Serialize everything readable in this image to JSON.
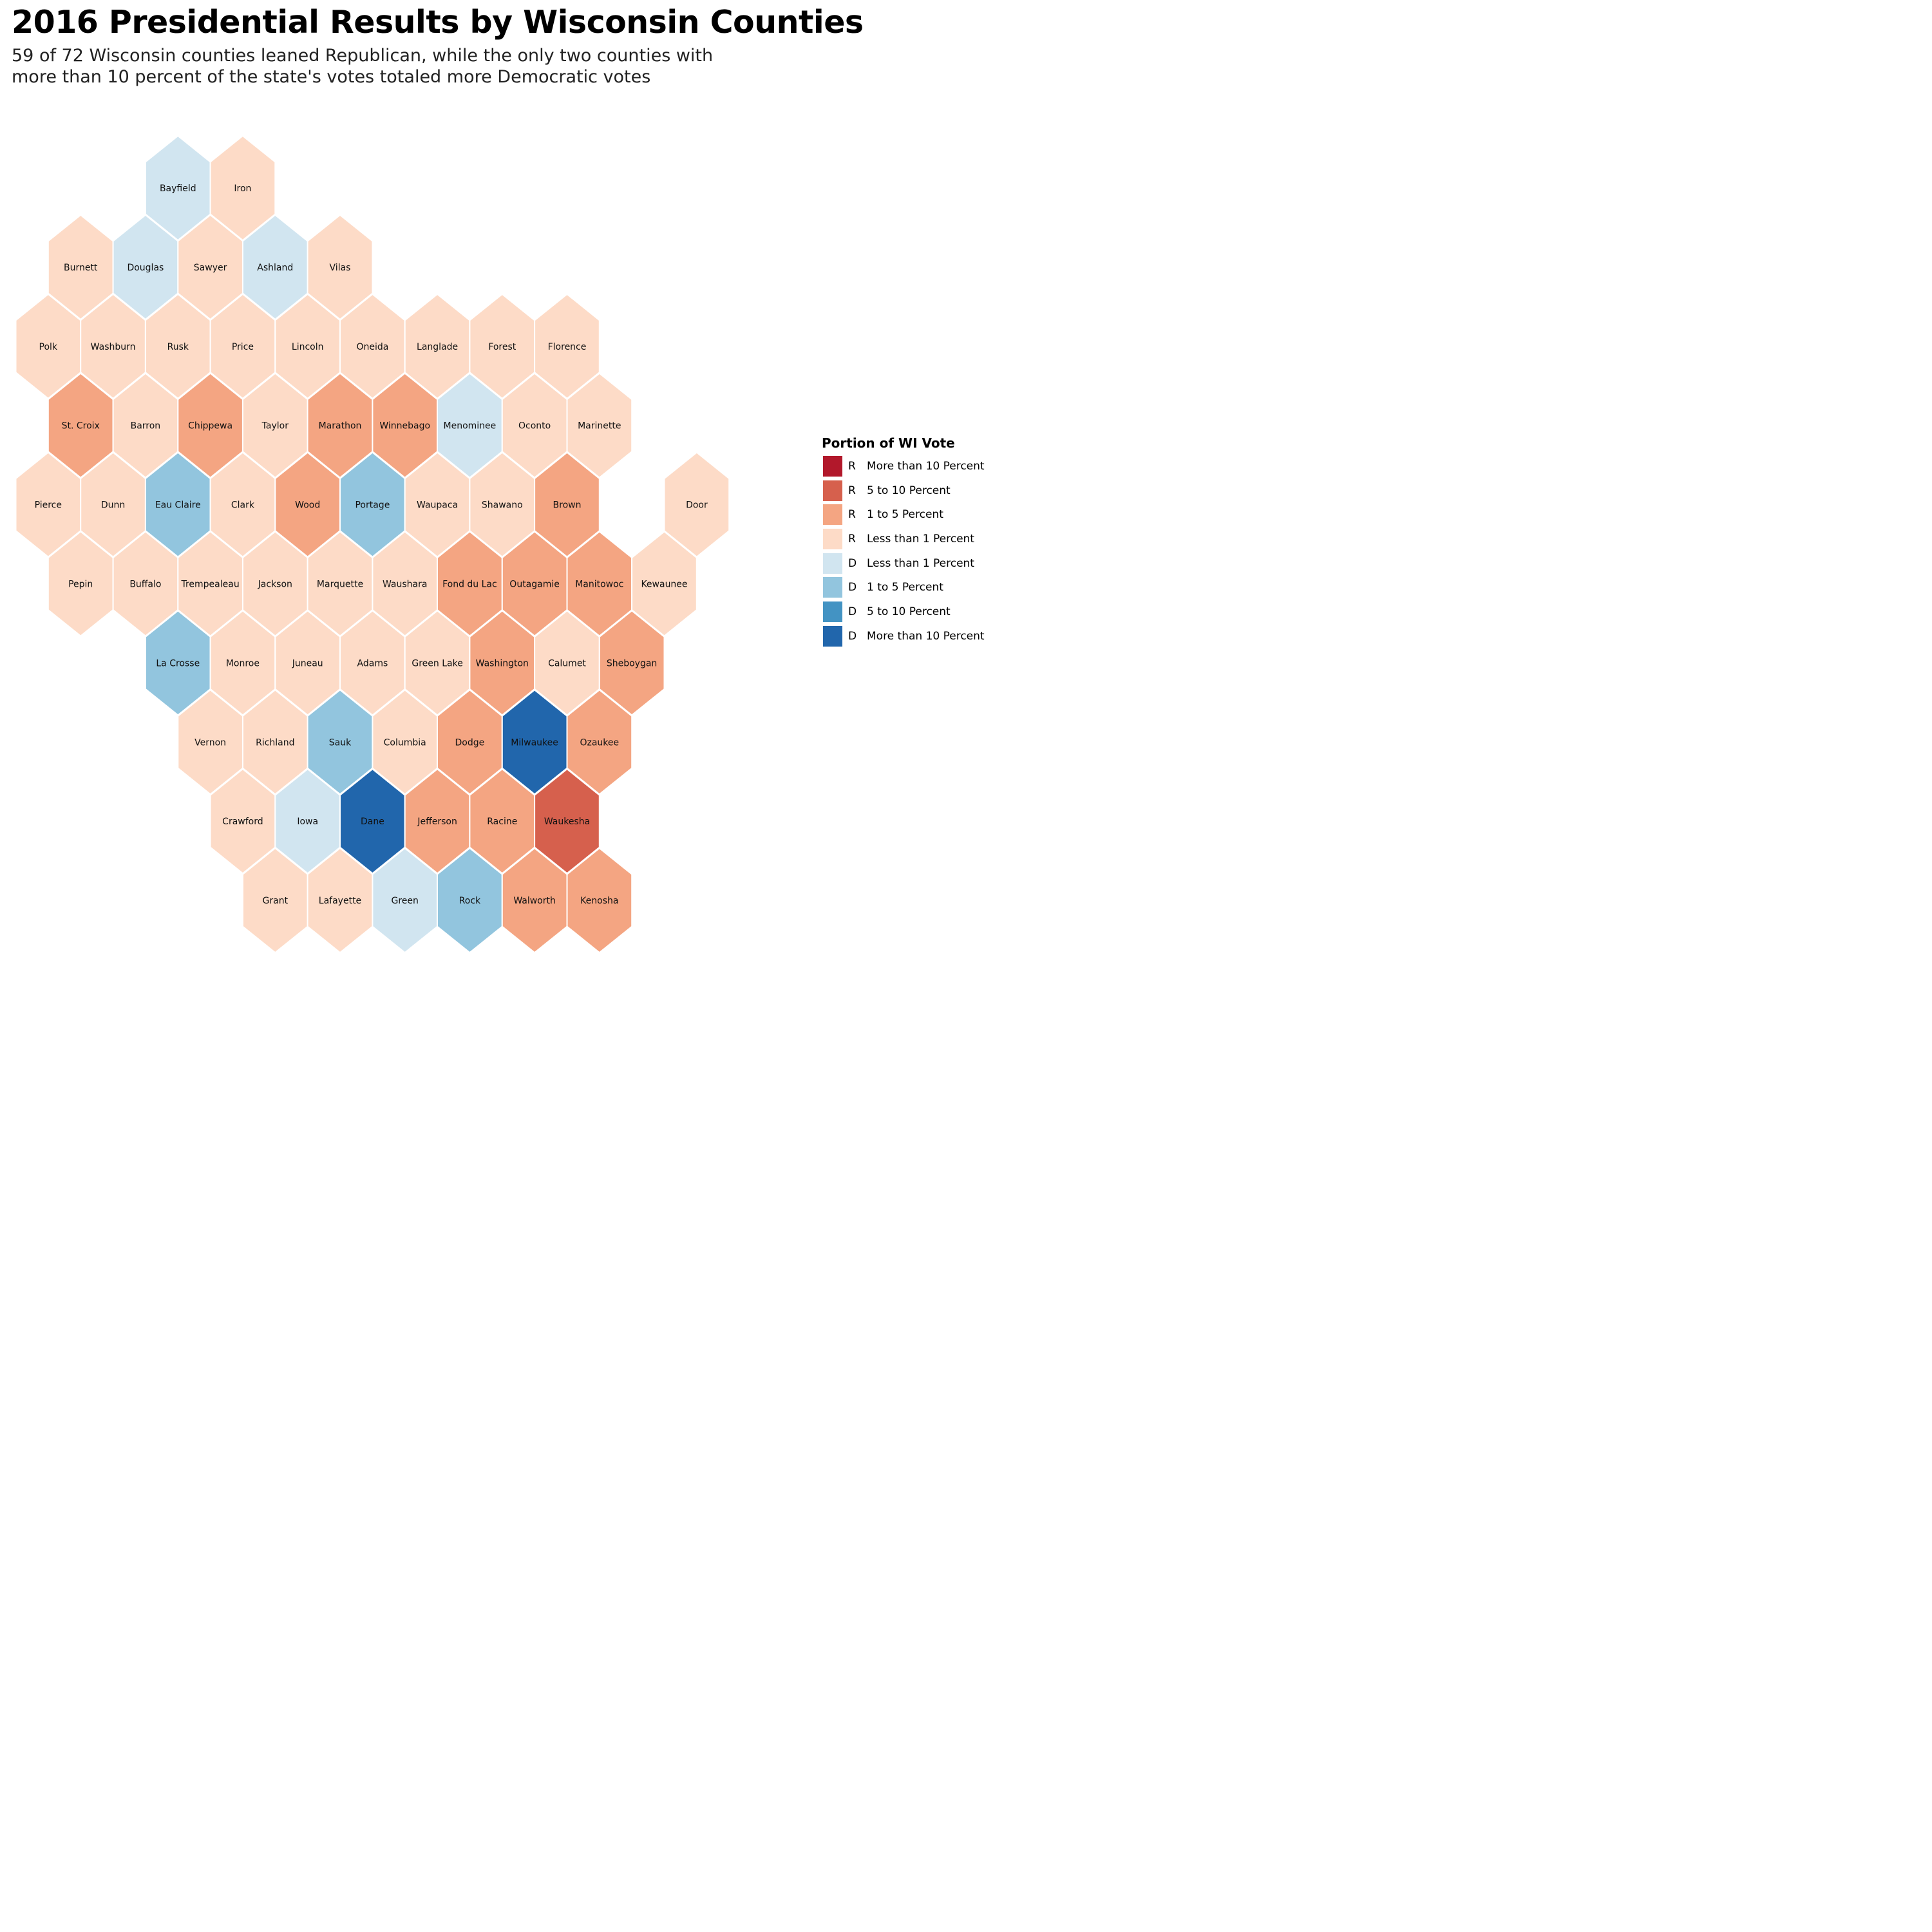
{
  "title": "2016 Presidential Results by Wisconsin Counties",
  "subtitle": [
    "59 of 72 Wisconsin counties leaned Republican, while the only two counties with",
    "more than 10 percent of the state's votes totaled more Democratic votes"
  ],
  "legend": {
    "title": "Portion of WI Vote",
    "items": [
      {
        "key": "R4",
        "party": "R",
        "label": "More than 10 Percent",
        "color": "#b2182b"
      },
      {
        "key": "R3",
        "party": "R",
        "label": "5 to 10 Percent",
        "color": "#d6604d"
      },
      {
        "key": "R2",
        "party": "R",
        "label": "1 to 5 Percent",
        "color": "#f4a582"
      },
      {
        "key": "R1",
        "party": "R",
        "label": "Less than 1 Percent",
        "color": "#fddbc7"
      },
      {
        "key": "D1",
        "party": "D",
        "label": "Less than 1 Percent",
        "color": "#d1e5f0"
      },
      {
        "key": "D2",
        "party": "D",
        "label": "1 to 5 Percent",
        "color": "#92c5de"
      },
      {
        "key": "D3",
        "party": "D",
        "label": "5 to 10 Percent",
        "color": "#4393c3"
      },
      {
        "key": "D4",
        "party": "D",
        "label": "More than 10 Percent",
        "color": "#2166ac"
      }
    ]
  },
  "counties": [
    {
      "name": "Bayfield",
      "row": 0,
      "col": 5,
      "category": "D1"
    },
    {
      "name": "Iron",
      "row": 0,
      "col": 7,
      "category": "R1"
    },
    {
      "name": "Burnett",
      "row": 1,
      "col": 2,
      "category": "R1"
    },
    {
      "name": "Douglas",
      "row": 1,
      "col": 4,
      "category": "D1"
    },
    {
      "name": "Sawyer",
      "row": 1,
      "col": 6,
      "category": "R1"
    },
    {
      "name": "Ashland",
      "row": 1,
      "col": 8,
      "category": "D1"
    },
    {
      "name": "Vilas",
      "row": 1,
      "col": 10,
      "category": "R1"
    },
    {
      "name": "Polk",
      "row": 2,
      "col": 1,
      "category": "R1"
    },
    {
      "name": "Washburn",
      "row": 2,
      "col": 3,
      "category": "R1"
    },
    {
      "name": "Rusk",
      "row": 2,
      "col": 5,
      "category": "R1"
    },
    {
      "name": "Price",
      "row": 2,
      "col": 7,
      "category": "R1"
    },
    {
      "name": "Lincoln",
      "row": 2,
      "col": 9,
      "category": "R1"
    },
    {
      "name": "Oneida",
      "row": 2,
      "col": 11,
      "category": "R1"
    },
    {
      "name": "Langlade",
      "row": 2,
      "col": 13,
      "category": "R1"
    },
    {
      "name": "Forest",
      "row": 2,
      "col": 15,
      "category": "R1"
    },
    {
      "name": "Florence",
      "row": 2,
      "col": 17,
      "category": "R1"
    },
    {
      "name": "St. Croix",
      "row": 3,
      "col": 2,
      "category": "R2"
    },
    {
      "name": "Barron",
      "row": 3,
      "col": 4,
      "category": "R1"
    },
    {
      "name": "Chippewa",
      "row": 3,
      "col": 6,
      "category": "R2"
    },
    {
      "name": "Taylor",
      "row": 3,
      "col": 8,
      "category": "R1"
    },
    {
      "name": "Marathon",
      "row": 3,
      "col": 10,
      "category": "R2"
    },
    {
      "name": "Winnebago",
      "row": 3,
      "col": 12,
      "category": "R2"
    },
    {
      "name": "Menominee",
      "row": 3,
      "col": 14,
      "category": "D1"
    },
    {
      "name": "Oconto",
      "row": 3,
      "col": 16,
      "category": "R1"
    },
    {
      "name": "Marinette",
      "row": 3,
      "col": 18,
      "category": "R1"
    },
    {
      "name": "Pierce",
      "row": 4,
      "col": 1,
      "category": "R1"
    },
    {
      "name": "Dunn",
      "row": 4,
      "col": 3,
      "category": "R1"
    },
    {
      "name": "Eau Claire",
      "row": 4,
      "col": 5,
      "category": "D2"
    },
    {
      "name": "Clark",
      "row": 4,
      "col": 7,
      "category": "R1"
    },
    {
      "name": "Wood",
      "row": 4,
      "col": 9,
      "category": "R2"
    },
    {
      "name": "Portage",
      "row": 4,
      "col": 11,
      "category": "D2"
    },
    {
      "name": "Waupaca",
      "row": 4,
      "col": 13,
      "category": "R1"
    },
    {
      "name": "Shawano",
      "row": 4,
      "col": 15,
      "category": "R1"
    },
    {
      "name": "Brown",
      "row": 4,
      "col": 17,
      "category": "R2"
    },
    {
      "name": "Door",
      "row": 4,
      "col": 21,
      "category": "R1"
    },
    {
      "name": "Pepin",
      "row": 5,
      "col": 2,
      "category": "R1"
    },
    {
      "name": "Buffalo",
      "row": 5,
      "col": 4,
      "category": "R1"
    },
    {
      "name": "Trempealeau",
      "row": 5,
      "col": 6,
      "category": "R1"
    },
    {
      "name": "Jackson",
      "row": 5,
      "col": 8,
      "category": "R1"
    },
    {
      "name": "Marquette",
      "row": 5,
      "col": 10,
      "category": "R1"
    },
    {
      "name": "Waushara",
      "row": 5,
      "col": 12,
      "category": "R1"
    },
    {
      "name": "Fond du Lac",
      "row": 5,
      "col": 14,
      "category": "R2"
    },
    {
      "name": "Outagamie",
      "row": 5,
      "col": 16,
      "category": "R2"
    },
    {
      "name": "Manitowoc",
      "row": 5,
      "col": 18,
      "category": "R2"
    },
    {
      "name": "Kewaunee",
      "row": 5,
      "col": 20,
      "category": "R1"
    },
    {
      "name": "La Crosse",
      "row": 6,
      "col": 5,
      "category": "D2"
    },
    {
      "name": "Monroe",
      "row": 6,
      "col": 7,
      "category": "R1"
    },
    {
      "name": "Juneau",
      "row": 6,
      "col": 9,
      "category": "R1"
    },
    {
      "name": "Adams",
      "row": 6,
      "col": 11,
      "category": "R1"
    },
    {
      "name": "Green Lake",
      "row": 6,
      "col": 13,
      "category": "R1"
    },
    {
      "name": "Washington",
      "row": 6,
      "col": 15,
      "category": "R2"
    },
    {
      "name": "Calumet",
      "row": 6,
      "col": 17,
      "category": "R1"
    },
    {
      "name": "Sheboygan",
      "row": 6,
      "col": 19,
      "category": "R2"
    },
    {
      "name": "Vernon",
      "row": 7,
      "col": 6,
      "category": "R1"
    },
    {
      "name": "Richland",
      "row": 7,
      "col": 8,
      "category": "R1"
    },
    {
      "name": "Sauk",
      "row": 7,
      "col": 10,
      "category": "D2"
    },
    {
      "name": "Columbia",
      "row": 7,
      "col": 12,
      "category": "R1"
    },
    {
      "name": "Dodge",
      "row": 7,
      "col": 14,
      "category": "R2"
    },
    {
      "name": "Milwaukee",
      "row": 7,
      "col": 16,
      "category": "D4"
    },
    {
      "name": "Ozaukee",
      "row": 7,
      "col": 18,
      "category": "R2"
    },
    {
      "name": "Crawford",
      "row": 8,
      "col": 7,
      "category": "R1"
    },
    {
      "name": "Iowa",
      "row": 8,
      "col": 9,
      "category": "D1"
    },
    {
      "name": "Dane",
      "row": 8,
      "col": 11,
      "category": "D4"
    },
    {
      "name": "Jefferson",
      "row": 8,
      "col": 13,
      "category": "R2"
    },
    {
      "name": "Racine",
      "row": 8,
      "col": 15,
      "category": "R2"
    },
    {
      "name": "Waukesha",
      "row": 8,
      "col": 17,
      "category": "R3"
    },
    {
      "name": "Grant",
      "row": 9,
      "col": 8,
      "category": "R1"
    },
    {
      "name": "Lafayette",
      "row": 9,
      "col": 10,
      "category": "R1"
    },
    {
      "name": "Green",
      "row": 9,
      "col": 12,
      "category": "D1"
    },
    {
      "name": "Rock",
      "row": 9,
      "col": 14,
      "category": "D2"
    },
    {
      "name": "Walworth",
      "row": 9,
      "col": 16,
      "category": "R2"
    },
    {
      "name": "Kenosha",
      "row": 9,
      "col": 18,
      "category": "R2"
    }
  ]
}
